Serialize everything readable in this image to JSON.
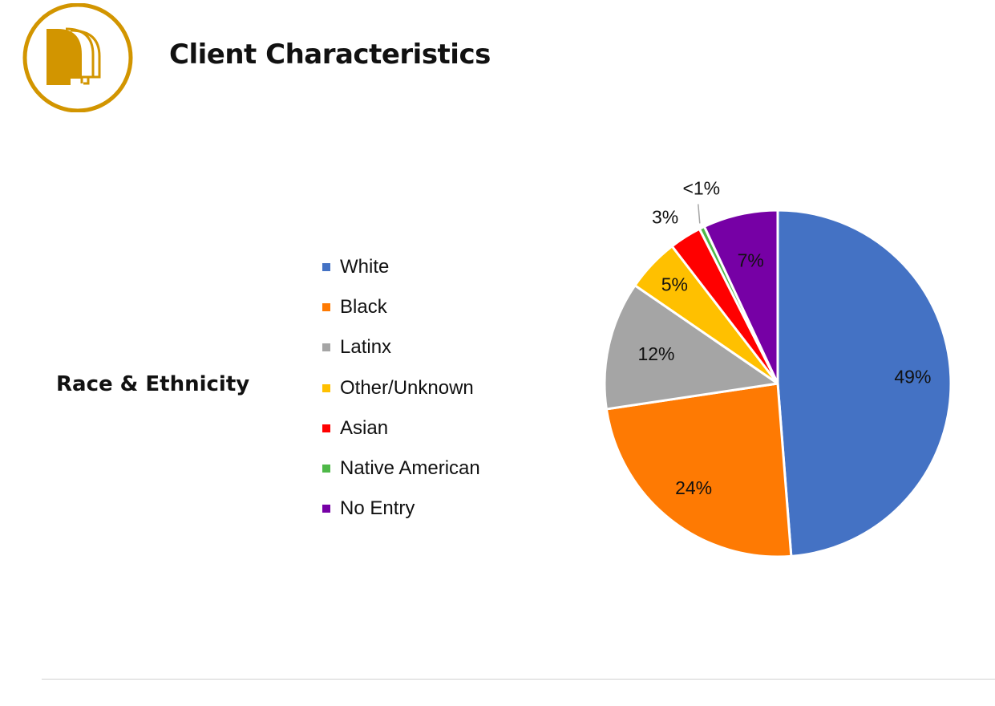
{
  "header": {
    "title": "Client Characteristics"
  },
  "logo": {
    "icon": "profile-heads-icon",
    "color": "#d29500"
  },
  "section": {
    "label": "Race & Ethnicity"
  },
  "chart_data": {
    "type": "pie",
    "categories": [
      "White",
      "Black",
      "Latinx",
      "Other/Unknown",
      "Asian",
      "Native American",
      "No Entry"
    ],
    "values": [
      49,
      24,
      12,
      5,
      3,
      0.5,
      7
    ],
    "labels": [
      "49%",
      "24%",
      "12%",
      "5%",
      "3%",
      "<1%",
      "7%"
    ],
    "colors": [
      "#4472c4",
      "#fe7a03",
      "#a5a5a5",
      "#ffc000",
      "#ff0000",
      "#4eb848",
      "#7600a5"
    ],
    "legend": "left"
  }
}
